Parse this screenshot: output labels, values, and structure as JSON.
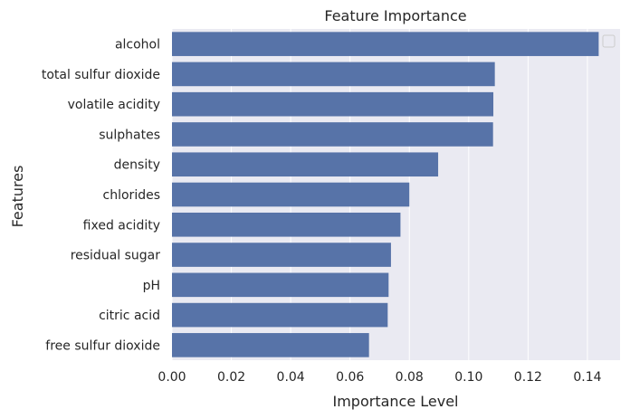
{
  "chart_data": {
    "type": "bar",
    "orientation": "horizontal",
    "title": "Feature Importance",
    "xlabel": "Importance Level",
    "ylabel": "Features",
    "categories": [
      "alcohol",
      "total sulfur dioxide",
      "volatile acidity",
      "sulphates",
      "density",
      "chlorides",
      "fixed acidity",
      "residual sugar",
      "pH",
      "citric acid",
      "free sulfur dioxide"
    ],
    "values": [
      0.1438,
      0.1088,
      0.1083,
      0.1082,
      0.0897,
      0.08,
      0.077,
      0.0738,
      0.073,
      0.0727,
      0.0664
    ],
    "xlim": [
      0,
      0.151
    ],
    "xticks": [
      "0.00",
      "0.02",
      "0.04",
      "0.06",
      "0.08",
      "0.10",
      "0.12",
      "0.14"
    ],
    "grid": true,
    "legend": "top-right",
    "colors": {
      "bar": "#5773a8",
      "plot_background": "#eaeaf2",
      "grid": "#ffffff"
    }
  }
}
